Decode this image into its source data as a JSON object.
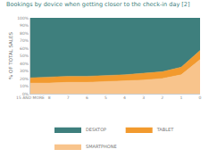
{
  "chart_data": {
    "type": "area",
    "stacked": true,
    "title": "Bookings by device when getting closer to the check-in day [2]",
    "y_label": "% OF TOTAL SALES",
    "categories": [
      "15 AND MORE",
      "8",
      "7",
      "6",
      "5",
      "4",
      "3",
      "2",
      "1",
      "0"
    ],
    "series": [
      {
        "name": "SMARTPHONE",
        "color": "#f8c48c",
        "values": [
          14,
          14,
          15,
          15,
          16,
          17,
          18,
          20,
          25,
          45
        ]
      },
      {
        "name": "TABLET",
        "color": "#f29a2e",
        "values": [
          7,
          8,
          8,
          8,
          8,
          8,
          9,
          9,
          10,
          12
        ]
      },
      {
        "name": "DESKTOP",
        "color": "#3e7f7d",
        "values": [
          79,
          78,
          77,
          77,
          76,
          75,
          73,
          71,
          65,
          43
        ]
      }
    ],
    "ylim": [
      0,
      100
    ],
    "yticks": [
      {
        "value": 0,
        "label": "0%"
      },
      {
        "value": 10,
        "label": "10%"
      },
      {
        "value": 20,
        "label": "20%"
      },
      {
        "value": 30,
        "label": "30%"
      },
      {
        "value": 40,
        "label": "40%"
      },
      {
        "value": 50,
        "label": "50%"
      },
      {
        "value": 60,
        "label": "60%"
      },
      {
        "value": 70,
        "label": "70%"
      },
      {
        "value": 80,
        "label": "80%"
      },
      {
        "value": 90,
        "label": "90%"
      },
      {
        "value": 100,
        "label": "100%"
      }
    ],
    "grid": true,
    "legend": "bottom"
  }
}
